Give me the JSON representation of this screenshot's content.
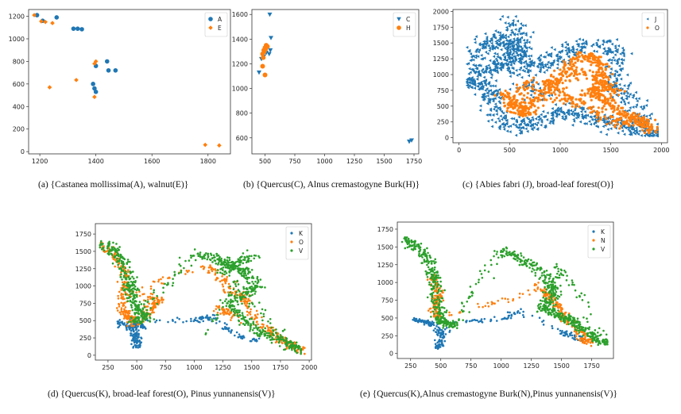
{
  "colors": {
    "blue": "#1f77b4",
    "orange": "#ff7f0e",
    "green": "#2ca02c"
  },
  "chart_data": [
    {
      "id": "a",
      "type": "scatter",
      "marker_style": "dots",
      "caption": "(a)   {Castanea mollissima(A), walnut(E)}",
      "xlim": [
        1160,
        1880
      ],
      "ylim": [
        -20,
        1260
      ],
      "xticks": [
        1200,
        1400,
        1600,
        1800
      ],
      "yticks": [
        0,
        200,
        400,
        600,
        800,
        1000,
        1200
      ],
      "legend_position": "top-right",
      "series": [
        {
          "name": "A",
          "color": "#1f77b4",
          "marker": "circle",
          "points": [
            [
              1190,
              1210
            ],
            [
              1210,
              1160
            ],
            [
              1260,
              1190
            ],
            [
              1320,
              1090
            ],
            [
              1335,
              1090
            ],
            [
              1350,
              1085
            ],
            [
              1400,
              760
            ],
            [
              1395,
              560
            ],
            [
              1390,
              600
            ],
            [
              1400,
              530
            ],
            [
              1440,
              800
            ],
            [
              1445,
              720
            ],
            [
              1470,
              720
            ]
          ]
        },
        {
          "name": "E",
          "color": "#ff7f0e",
          "marker": "diamond",
          "points": [
            [
              1180,
              1210
            ],
            [
              1205,
              1155
            ],
            [
              1220,
              1150
            ],
            [
              1245,
              1140
            ],
            [
              1235,
              570
            ],
            [
              1330,
              635
            ],
            [
              1395,
              780
            ],
            [
              1400,
              800
            ],
            [
              1395,
              485
            ],
            [
              1790,
              60
            ],
            [
              1840,
              55
            ]
          ]
        }
      ]
    },
    {
      "id": "b",
      "type": "scatter",
      "marker_style": "dots",
      "caption": "(b) {Quercus(C), Alnus cremastogyne Burk(H)}",
      "xlim": [
        390,
        1790
      ],
      "ylim": [
        470,
        1640
      ],
      "xticks": [
        500,
        750,
        1000,
        1250,
        1500,
        1750
      ],
      "yticks": [
        600,
        800,
        1000,
        1200,
        1400,
        1600
      ],
      "legend_position": "top-right",
      "series": [
        {
          "name": "C",
          "color": "#1f77b4",
          "marker": "triangle-down",
          "points": [
            [
              540,
              1600
            ],
            [
              550,
              1410
            ],
            [
              450,
              1130
            ],
            [
              470,
              1240
            ],
            [
              490,
              1260
            ],
            [
              510,
              1290
            ],
            [
              535,
              1280
            ],
            [
              545,
              1310
            ],
            [
              1710,
              570
            ],
            [
              1730,
              580
            ]
          ]
        },
        {
          "name": "H",
          "color": "#ff7f0e",
          "marker": "circle",
          "points": [
            [
              480,
              1280
            ],
            [
              490,
              1310
            ],
            [
              500,
              1330
            ],
            [
              510,
              1350
            ],
            [
              520,
              1340
            ],
            [
              495,
              1300
            ],
            [
              505,
              1320
            ],
            [
              480,
              1180
            ],
            [
              500,
              1110
            ],
            [
              485,
              1250
            ]
          ]
        }
      ]
    },
    {
      "id": "c",
      "type": "scatter",
      "marker_style": "cloud",
      "caption": "(c) {Abies fabri (J), broad-leaf forest(O)}",
      "xlim": [
        -60,
        2060
      ],
      "ylim": [
        -80,
        2030
      ],
      "xticks": [
        0,
        500,
        1000,
        1500,
        2000
      ],
      "yticks": [
        0,
        250,
        500,
        750,
        1000,
        1250,
        1500,
        1750,
        2000
      ],
      "legend_position": "top-right",
      "series": [
        {
          "name": "J",
          "color": "#1f77b4",
          "marker": "triangle-left",
          "size": 1.9,
          "path": [
            [
              450,
              1880
            ],
            [
              600,
              1600
            ],
            [
              550,
              1300
            ],
            [
              420,
              1150
            ],
            [
              200,
              1050
            ],
            [
              120,
              900
            ],
            [
              250,
              800
            ],
            [
              350,
              620
            ],
            [
              400,
              300
            ],
            [
              550,
              150
            ],
            [
              800,
              250
            ],
            [
              1000,
              400
            ],
            [
              1200,
              380
            ],
            [
              1400,
              250
            ],
            [
              1600,
              200
            ],
            [
              1800,
              100
            ],
            [
              1950,
              50
            ],
            [
              1700,
              600
            ],
            [
              1500,
              900
            ],
            [
              1600,
              1300
            ],
            [
              1400,
              1500
            ],
            [
              1100,
              1400
            ],
            [
              900,
              1200
            ],
            [
              700,
              1100
            ],
            [
              600,
              1300
            ],
            [
              450,
              1600
            ],
            [
              300,
              1500
            ],
            [
              150,
              1300
            ],
            [
              600,
              900
            ],
            [
              900,
              650
            ]
          ],
          "n": 1300,
          "spread": 90,
          "xmin": 80,
          "xmax": 1960,
          "ymin": 30,
          "ymax": 1920
        },
        {
          "name": "O",
          "color": "#ff7f0e",
          "marker": "circle",
          "size": 1.6,
          "path": [
            [
              450,
              700
            ],
            [
              550,
              500
            ],
            [
              650,
              350
            ],
            [
              800,
              700
            ],
            [
              1000,
              1000
            ],
            [
              1200,
              1300
            ],
            [
              1400,
              1200
            ],
            [
              1450,
              900
            ],
            [
              1300,
              700
            ],
            [
              1500,
              500
            ],
            [
              1700,
              350
            ],
            [
              1900,
              120
            ],
            [
              1800,
              300
            ],
            [
              1550,
              250
            ],
            [
              1100,
              600
            ],
            [
              900,
              850
            ],
            [
              1250,
              1050
            ],
            [
              1600,
              700
            ],
            [
              500,
              550
            ],
            [
              700,
              900
            ]
          ],
          "n": 850,
          "spread": 60,
          "xmin": 350,
          "xmax": 1960,
          "ymin": 40,
          "ymax": 1500
        }
      ]
    },
    {
      "id": "d",
      "type": "scatter",
      "marker_style": "cloud",
      "caption": "(d) {Quercus(K), broad-leaf forest(O), Pinus yunnanensis(V)}",
      "xlim": [
        140,
        2020
      ],
      "ylim": [
        -70,
        1900
      ],
      "xticks": [
        250,
        500,
        750,
        1000,
        1250,
        1500,
        1750,
        2000
      ],
      "yticks": [
        0,
        250,
        500,
        750,
        1000,
        1250,
        1500,
        1750
      ],
      "legend_position": "top-right",
      "series": [
        {
          "name": "K",
          "color": "#1f77b4",
          "marker": "circle",
          "size": 1.3,
          "path": [
            [
              330,
              480
            ],
            [
              400,
              430
            ],
            [
              470,
              380
            ],
            [
              500,
              250
            ],
            [
              500,
              120
            ],
            [
              470,
              450
            ],
            [
              560,
              400
            ],
            [
              440,
              520
            ],
            [
              1000,
              500
            ],
            [
              1150,
              550
            ],
            [
              1350,
              300
            ],
            [
              1550,
              200
            ]
          ],
          "n": 260,
          "spread": 28,
          "xmin": 280,
          "xmax": 1650,
          "ymin": 60,
          "ymax": 650
        },
        {
          "name": "O",
          "color": "#ff7f0e",
          "marker": "circle",
          "size": 1.3,
          "path": [
            [
              200,
              1600
            ],
            [
              300,
              1450
            ],
            [
              400,
              1200
            ],
            [
              400,
              950
            ],
            [
              370,
              700
            ],
            [
              420,
              550
            ],
            [
              500,
              450
            ],
            [
              600,
              650
            ],
            [
              700,
              800
            ],
            [
              450,
              900
            ],
            [
              1100,
              1300
            ],
            [
              1250,
              1100
            ],
            [
              1350,
              900
            ],
            [
              1450,
              800
            ],
            [
              1500,
              600
            ],
            [
              1600,
              400
            ],
            [
              1750,
              250
            ],
            [
              1850,
              150
            ],
            [
              1950,
              50
            ],
            [
              1200,
              700
            ],
            [
              1350,
              550
            ]
          ],
          "n": 600,
          "spread": 40,
          "xmin": 180,
          "xmax": 1960,
          "ymin": 20,
          "ymax": 1650
        },
        {
          "name": "V",
          "color": "#2ca02c",
          "marker": "circle",
          "size": 1.3,
          "path": [
            [
              200,
              1620
            ],
            [
              300,
              1500
            ],
            [
              380,
              1350
            ],
            [
              420,
              1100
            ],
            [
              450,
              900
            ],
            [
              500,
              700
            ],
            [
              600,
              550
            ],
            [
              450,
              480
            ],
            [
              1000,
              1450
            ],
            [
              1200,
              1400
            ],
            [
              1300,
              1300
            ],
            [
              1450,
              1200
            ],
            [
              1550,
              1000
            ],
            [
              1450,
              900
            ],
            [
              1300,
              750
            ],
            [
              1400,
              550
            ],
            [
              1550,
              350
            ],
            [
              1700,
              250
            ],
            [
              1850,
              150
            ],
            [
              1900,
              50
            ],
            [
              1250,
              1200
            ],
            [
              1500,
              1450
            ],
            [
              1100,
              300
            ]
          ],
          "n": 950,
          "spread": 45,
          "xmin": 180,
          "xmax": 1960,
          "ymin": 20,
          "ymax": 1850
        }
      ]
    },
    {
      "id": "e",
      "type": "scatter",
      "marker_style": "cloud",
      "caption": "(e) {Quercus(K),Alnus cremastogyne Burk(N),Pinus yunnanensis(V)}",
      "xlim": [
        140,
        1930
      ],
      "ylim": [
        -70,
        1850
      ],
      "xticks": [
        250,
        500,
        750,
        1000,
        1250,
        1500,
        1750
      ],
      "yticks": [
        0,
        250,
        500,
        750,
        1000,
        1250,
        1500,
        1750
      ],
      "legend_position": "top-right",
      "series": [
        {
          "name": "K",
          "color": "#1f77b4",
          "marker": "circle",
          "size": 1.3,
          "path": [
            [
              300,
              480
            ],
            [
              380,
              450
            ],
            [
              440,
              400
            ],
            [
              500,
              300
            ],
            [
              490,
              150
            ],
            [
              470,
              80
            ],
            [
              560,
              420
            ],
            [
              1050,
              500
            ],
            [
              1150,
              600
            ],
            [
              1500,
              300
            ],
            [
              1600,
              250
            ],
            [
              1700,
              180
            ]
          ],
          "n": 230,
          "spread": 26,
          "xmin": 260,
          "xmax": 1750,
          "ymin": 40,
          "ymax": 650
        },
        {
          "name": "N",
          "color": "#ff7f0e",
          "marker": "circle",
          "size": 1.3,
          "path": [
            [
              430,
              1100
            ],
            [
              460,
              950
            ],
            [
              480,
              800
            ],
            [
              450,
              650
            ],
            [
              470,
              500
            ],
            [
              1350,
              900
            ],
            [
              1450,
              700
            ],
            [
              1600,
              400
            ],
            [
              1750,
              150
            ],
            [
              1650,
              200
            ],
            [
              1300,
              1000
            ]
          ],
          "n": 350,
          "spread": 30,
          "xmin": 380,
          "xmax": 1800,
          "ymin": 80,
          "ymax": 1200
        },
        {
          "name": "V",
          "color": "#2ca02c",
          "marker": "circle",
          "size": 1.3,
          "path": [
            [
              200,
              1620
            ],
            [
              300,
              1500
            ],
            [
              380,
              1350
            ],
            [
              430,
              1150
            ],
            [
              460,
              900
            ],
            [
              480,
              650
            ],
            [
              500,
              450
            ],
            [
              600,
              400
            ],
            [
              1000,
              1450
            ],
            [
              1150,
              1350
            ],
            [
              1300,
              1200
            ],
            [
              1400,
              1000
            ],
            [
              1450,
              800
            ],
            [
              1350,
              650
            ],
            [
              1450,
              550
            ],
            [
              1550,
              500
            ],
            [
              1650,
              350
            ],
            [
              1750,
              250
            ],
            [
              1850,
              150
            ],
            [
              1500,
              1250
            ],
            [
              1300,
              500
            ]
          ],
          "n": 900,
          "spread": 42,
          "xmin": 180,
          "xmax": 1880,
          "ymin": 20,
          "ymax": 1800
        }
      ]
    }
  ]
}
